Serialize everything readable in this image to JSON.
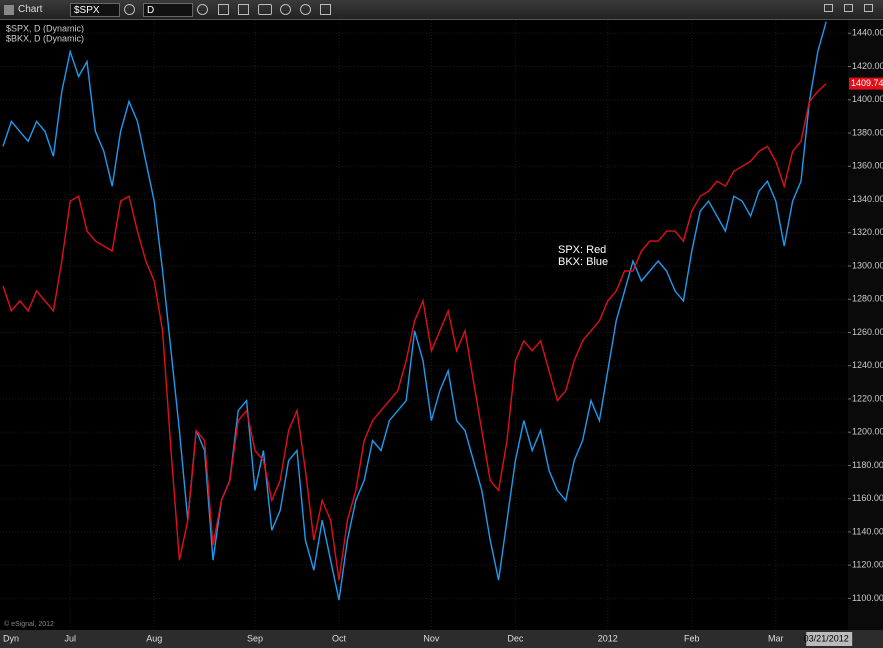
{
  "window_title": "Chart",
  "symbol": "$SPX",
  "interval": "D",
  "chart_data": {
    "type": "line",
    "legend": [
      "$SPX, D (Dynamic)",
      "$BKX, D (Dynamic)"
    ],
    "annotations": [
      "SPX:  Red",
      "BKX:  Blue"
    ],
    "copyright": "© eSignal, 2012",
    "mode_label": "Dyn",
    "last_price_label": "1409.74",
    "categories": [
      null,
      null,
      null,
      null,
      null,
      null,
      null,
      null,
      "Jul",
      null,
      null,
      null,
      null,
      null,
      null,
      null,
      null,
      null,
      "Aug",
      null,
      null,
      null,
      null,
      null,
      null,
      null,
      null,
      null,
      null,
      null,
      "Sep",
      null,
      null,
      null,
      null,
      null,
      null,
      null,
      null,
      null,
      "Oct",
      null,
      null,
      null,
      null,
      null,
      null,
      null,
      null,
      null,
      null,
      "Nov",
      null,
      null,
      null,
      null,
      null,
      null,
      null,
      null,
      null,
      "Dec",
      null,
      null,
      null,
      null,
      null,
      null,
      null,
      null,
      null,
      null,
      "2012",
      null,
      null,
      null,
      null,
      null,
      null,
      null,
      null,
      null,
      "Feb",
      null,
      null,
      null,
      null,
      null,
      null,
      null,
      null,
      null,
      "Mar",
      null,
      null,
      null,
      null,
      null,
      "03/21/2012"
    ],
    "series": [
      {
        "name": "$SPX, D (Dynamic)",
        "color": "#e0101a",
        "values": [
          1288,
          1273,
          1279,
          1273,
          1285,
          1279,
          1273,
          1303,
          1339,
          1342,
          1321,
          1315,
          1312,
          1309,
          1339,
          1342,
          1321,
          1303,
          1291,
          1261,
          1189,
          1123,
          1147,
          1201,
          1195,
          1132,
          1159,
          1171,
          1207,
          1213,
          1189,
          1183,
          1159,
          1171,
          1201,
          1213,
          1177,
          1135,
          1159,
          1147,
          1111,
          1147,
          1165,
          1195,
          1207,
          1213,
          1219,
          1225,
          1243,
          1267,
          1279,
          1249,
          1261,
          1273,
          1249,
          1261,
          1231,
          1201,
          1171,
          1165,
          1195,
          1243,
          1255,
          1249,
          1255,
          1237,
          1219,
          1225,
          1243,
          1255,
          1261,
          1267,
          1279,
          1285,
          1297,
          1297,
          1309,
          1315,
          1315,
          1321,
          1321,
          1315,
          1333,
          1342,
          1345,
          1351,
          1348,
          1357,
          1360,
          1363,
          1369,
          1372,
          1363,
          1348,
          1369,
          1375,
          1399,
          1405,
          1409.74
        ]
      },
      {
        "name": "$BKX, D (Dynamic)",
        "color": "#1e9bf0",
        "values": [
          1372,
          1387,
          1381,
          1375,
          1387,
          1381,
          1366,
          1405,
          1429,
          1414,
          1423,
          1381,
          1369,
          1348,
          1381,
          1399,
          1387,
          1363,
          1339,
          1297,
          1249,
          1201,
          1147,
          1201,
          1189,
          1123,
          1159,
          1171,
          1213,
          1219,
          1165,
          1189,
          1141,
          1153,
          1183,
          1189,
          1135,
          1117,
          1147,
          1123,
          1099,
          1135,
          1159,
          1171,
          1195,
          1189,
          1207,
          1213,
          1219,
          1261,
          1243,
          1207,
          1225,
          1237,
          1207,
          1201,
          1183,
          1165,
          1135,
          1111,
          1147,
          1183,
          1207,
          1189,
          1201,
          1177,
          1165,
          1159,
          1183,
          1195,
          1219,
          1207,
          1237,
          1267,
          1285,
          1303,
          1291,
          1297,
          1303,
          1297,
          1285,
          1279,
          1309,
          1333,
          1339,
          1330,
          1321,
          1342,
          1339,
          1330,
          1345,
          1351,
          1339,
          1312,
          1339,
          1351,
          1399,
          1429,
          1447
        ]
      }
    ],
    "ylim": [
      1081,
      1448
    ],
    "yticks": [
      {
        "value": 1100,
        "label": "1100.00"
      },
      {
        "value": 1120,
        "label": "1120.00"
      },
      {
        "value": 1140,
        "label": "1140.00"
      },
      {
        "value": 1160,
        "label": "1160.00"
      },
      {
        "value": 1180,
        "label": "1180.00"
      },
      {
        "value": 1200,
        "label": "1200.00"
      },
      {
        "value": 1220,
        "label": "1220.00"
      },
      {
        "value": 1240,
        "label": "1240.00"
      },
      {
        "value": 1260,
        "label": "1260.00"
      },
      {
        "value": 1280,
        "label": "1280.00"
      },
      {
        "value": 1300,
        "label": "1300.00"
      },
      {
        "value": 1320,
        "label": "1320.00"
      },
      {
        "value": 1340,
        "label": "1340.00"
      },
      {
        "value": 1360,
        "label": "1360.00"
      },
      {
        "value": 1380,
        "label": "1380.00"
      },
      {
        "value": 1400,
        "label": "1400.00"
      },
      {
        "value": 1420,
        "label": "1420.00"
      },
      {
        "value": 1440,
        "label": "1440.00"
      }
    ],
    "grid": true
  }
}
